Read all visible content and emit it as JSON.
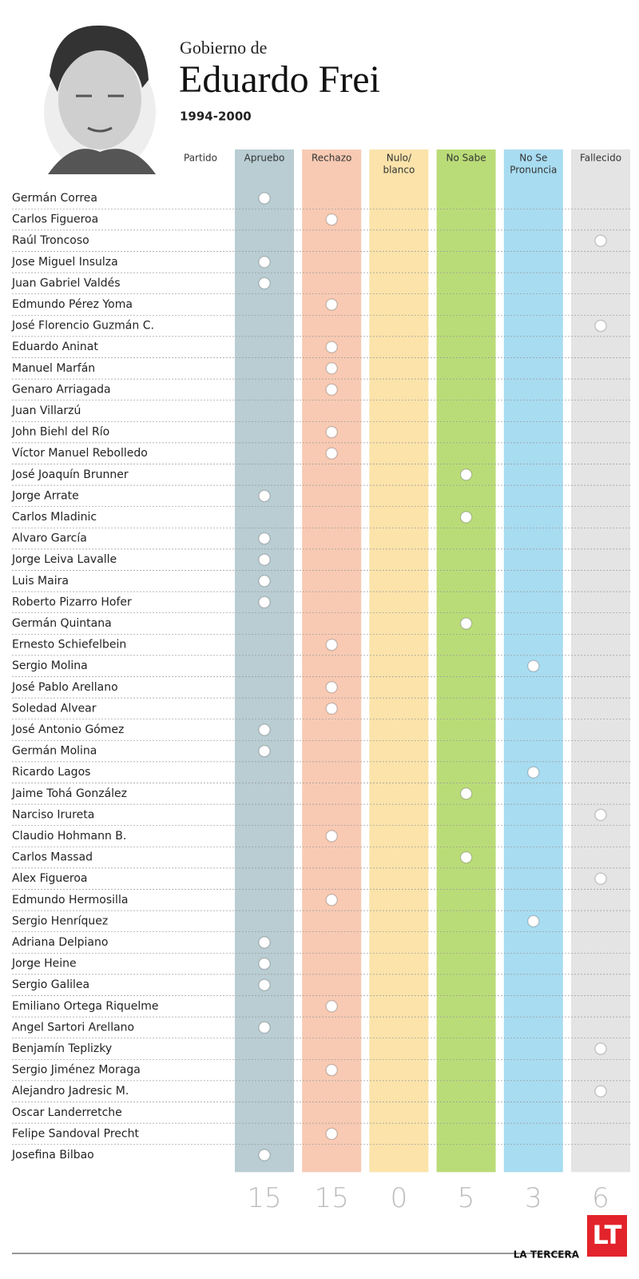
{
  "header": {
    "kicker": "Gobierno de",
    "title": "Eduardo Frei",
    "period": "1994-2000"
  },
  "name_header": "Partido",
  "columns": [
    {
      "label": [
        "Apruebo"
      ],
      "color": "#b9cdd3",
      "total": 15
    },
    {
      "label": [
        "Rechazo"
      ],
      "color": "#f8cab3",
      "total": 15
    },
    {
      "label": [
        "Nulo/",
        "blanco"
      ],
      "color": "#fbe3aa",
      "total": 0
    },
    {
      "label": [
        "No Sabe"
      ],
      "color": "#badc78",
      "total": 5
    },
    {
      "label": [
        "No Se",
        "Pronuncia"
      ],
      "color": "#a8dcf1",
      "total": 3
    },
    {
      "label": [
        "Fallecido"
      ],
      "color": "#e4e4e4",
      "total": 6
    }
  ],
  "rows": [
    {
      "name": "Germán Correa",
      "votes": [
        true,
        false,
        false,
        false,
        false,
        false
      ]
    },
    {
      "name": "Carlos Figueroa",
      "votes": [
        false,
        true,
        false,
        false,
        false,
        false
      ]
    },
    {
      "name": "Raúl Troncoso",
      "votes": [
        false,
        false,
        false,
        false,
        false,
        true
      ]
    },
    {
      "name": "Jose Miguel Insulza",
      "votes": [
        true,
        false,
        false,
        false,
        false,
        false
      ]
    },
    {
      "name": "Juan Gabriel Valdés",
      "votes": [
        true,
        false,
        false,
        false,
        false,
        false
      ]
    },
    {
      "name": "Edmundo Pérez Yoma",
      "votes": [
        false,
        true,
        false,
        false,
        false,
        false
      ]
    },
    {
      "name": "José Florencio Guzmán C.",
      "votes": [
        false,
        false,
        false,
        false,
        false,
        true
      ]
    },
    {
      "name": "Eduardo Aninat",
      "votes": [
        false,
        true,
        false,
        false,
        false,
        false
      ]
    },
    {
      "name": "Manuel Marfán",
      "votes": [
        false,
        true,
        false,
        false,
        false,
        false
      ]
    },
    {
      "name": "Genaro Arriagada",
      "votes": [
        false,
        true,
        false,
        false,
        false,
        false
      ]
    },
    {
      "name": "Juan Villarzú",
      "votes": [
        false,
        false,
        false,
        false,
        false,
        false
      ]
    },
    {
      "name": "John Biehl del Río",
      "votes": [
        false,
        true,
        false,
        false,
        false,
        false
      ]
    },
    {
      "name": "Víctor Manuel Rebolledo",
      "votes": [
        false,
        true,
        false,
        false,
        false,
        false
      ]
    },
    {
      "name": "José Joaquín Brunner",
      "votes": [
        false,
        false,
        false,
        true,
        false,
        false
      ]
    },
    {
      "name": "Jorge Arrate",
      "votes": [
        true,
        false,
        false,
        false,
        false,
        false
      ]
    },
    {
      "name": "Carlos Mladinic",
      "votes": [
        false,
        false,
        false,
        true,
        false,
        false
      ]
    },
    {
      "name": "Alvaro García",
      "votes": [
        true,
        false,
        false,
        false,
        false,
        false
      ]
    },
    {
      "name": "Jorge Leiva Lavalle",
      "votes": [
        true,
        false,
        false,
        false,
        false,
        false
      ]
    },
    {
      "name": "Luis Maira",
      "votes": [
        true,
        false,
        false,
        false,
        false,
        false
      ]
    },
    {
      "name": "Roberto Pizarro Hofer",
      "votes": [
        true,
        false,
        false,
        false,
        false,
        false
      ]
    },
    {
      "name": "Germán Quintana",
      "votes": [
        false,
        false,
        false,
        true,
        false,
        false
      ]
    },
    {
      "name": "Ernesto Schiefelbein",
      "votes": [
        false,
        true,
        false,
        false,
        false,
        false
      ]
    },
    {
      "name": "Sergio Molina",
      "votes": [
        false,
        false,
        false,
        false,
        true,
        false
      ]
    },
    {
      "name": "José Pablo Arellano",
      "votes": [
        false,
        true,
        false,
        false,
        false,
        false
      ]
    },
    {
      "name": "Soledad Alvear",
      "votes": [
        false,
        true,
        false,
        false,
        false,
        false
      ]
    },
    {
      "name": "José Antonio Gómez",
      "votes": [
        true,
        false,
        false,
        false,
        false,
        false
      ]
    },
    {
      "name": "Germán Molina",
      "votes": [
        true,
        false,
        false,
        false,
        false,
        false
      ]
    },
    {
      "name": "Ricardo Lagos",
      "votes": [
        false,
        false,
        false,
        false,
        true,
        false
      ]
    },
    {
      "name": "Jaime Tohá González",
      "votes": [
        false,
        false,
        false,
        true,
        false,
        false
      ]
    },
    {
      "name": "Narciso Irureta",
      "votes": [
        false,
        false,
        false,
        false,
        false,
        true
      ]
    },
    {
      "name": "Claudio Hohmann B.",
      "votes": [
        false,
        true,
        false,
        false,
        false,
        false
      ]
    },
    {
      "name": "Carlos Massad",
      "votes": [
        false,
        false,
        false,
        true,
        false,
        false
      ]
    },
    {
      "name": "Alex Figueroa",
      "votes": [
        false,
        false,
        false,
        false,
        false,
        true
      ]
    },
    {
      "name": "Edmundo Hermosilla",
      "votes": [
        false,
        true,
        false,
        false,
        false,
        false
      ]
    },
    {
      "name": "Sergio Henríquez",
      "votes": [
        false,
        false,
        false,
        false,
        true,
        false
      ]
    },
    {
      "name": "Adriana Delpiano",
      "votes": [
        true,
        false,
        false,
        false,
        false,
        false
      ]
    },
    {
      "name": "Jorge Heine",
      "votes": [
        true,
        false,
        false,
        false,
        false,
        false
      ]
    },
    {
      "name": "Sergio Galilea",
      "votes": [
        true,
        false,
        false,
        false,
        false,
        false
      ]
    },
    {
      "name": "Emiliano Ortega Riquelme",
      "votes": [
        false,
        true,
        false,
        false,
        false,
        false
      ]
    },
    {
      "name": "Angel Sartori Arellano",
      "votes": [
        true,
        false,
        false,
        false,
        false,
        false
      ]
    },
    {
      "name": "Benjamín Teplizky",
      "votes": [
        false,
        false,
        false,
        false,
        false,
        true
      ]
    },
    {
      "name": "Sergio Jiménez Moraga",
      "votes": [
        false,
        true,
        false,
        false,
        false,
        false
      ]
    },
    {
      "name": "Alejandro Jadresic M.",
      "votes": [
        false,
        false,
        false,
        false,
        false,
        true
      ]
    },
    {
      "name": "Oscar Landerretche",
      "votes": [
        false,
        false,
        false,
        false,
        false,
        false
      ]
    },
    {
      "name": "Felipe Sandoval Precht",
      "votes": [
        false,
        true,
        false,
        false,
        false,
        false
      ]
    },
    {
      "name": "Josefina Bilbao",
      "votes": [
        true,
        false,
        false,
        false,
        false,
        false
      ]
    }
  ],
  "footer": {
    "source": "LA TERCERA",
    "logo": "LT"
  }
}
